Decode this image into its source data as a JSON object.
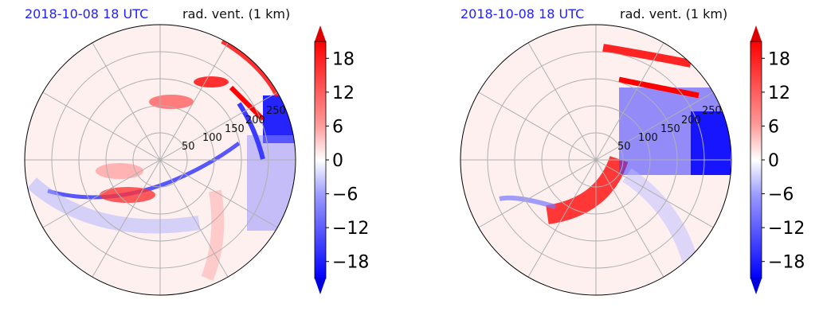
{
  "colors": {
    "positive": "#ff0000",
    "negative": "#0000ff",
    "background": "#fff0f0",
    "grid": "#b0b0b0"
  },
  "chart_data": [
    {
      "type": "heatmap",
      "projection": "polar",
      "time_label": "2018-10-08 18 UTC",
      "field_label": "rad. vent. (1 km)",
      "radial_ticks": [
        50,
        100,
        150,
        200,
        250
      ],
      "angular_gridlines_deg": [
        0,
        30,
        60,
        90,
        120,
        150,
        180,
        210,
        240,
        270,
        300,
        330
      ],
      "colorbar": {
        "ticks": [
          18,
          12,
          6,
          0,
          -6,
          -12,
          -18
        ],
        "tick_labels": [
          "18",
          "12",
          "6",
          "0",
          "−6",
          "−12",
          "−18"
        ],
        "range": [
          -21,
          21
        ],
        "extend": "both",
        "cmap": "bwr"
      }
    },
    {
      "type": "heatmap",
      "projection": "polar",
      "time_label": "2018-10-08 18 UTC",
      "field_label": "rad. vent. (1 km)",
      "radial_ticks": [
        50,
        100,
        150,
        200,
        250
      ],
      "angular_gridlines_deg": [
        0,
        30,
        60,
        90,
        120,
        150,
        180,
        210,
        240,
        270,
        300,
        330
      ],
      "colorbar": {
        "ticks": [
          18,
          12,
          6,
          0,
          -6,
          -12,
          -18
        ],
        "tick_labels": [
          "18",
          "12",
          "6",
          "0",
          "−6",
          "−12",
          "−18"
        ],
        "range": [
          -21,
          21
        ],
        "extend": "both",
        "cmap": "bwr"
      }
    }
  ]
}
